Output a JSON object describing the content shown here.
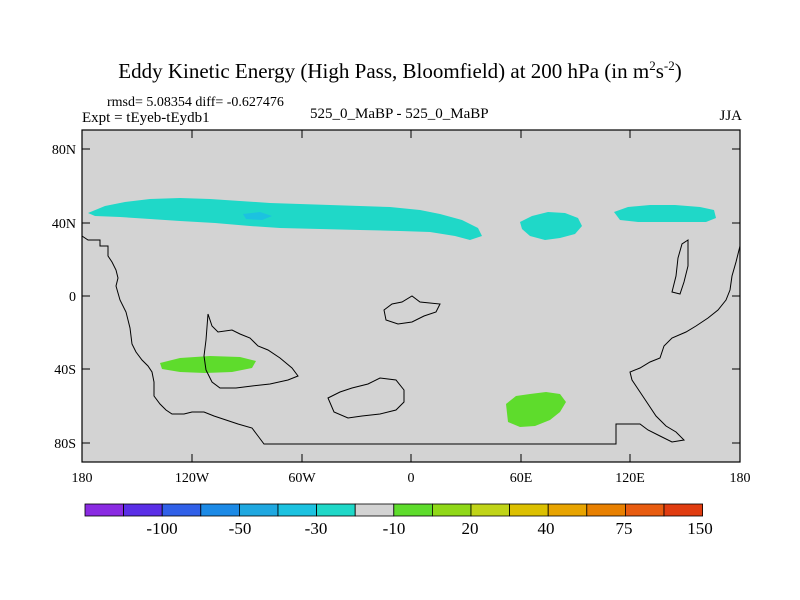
{
  "header": {
    "title_main": "Eddy Kinetic Energy (High Pass, Bloomfield) at 200 hPa (in m",
    "title_sup1": "2",
    "title_s": "s",
    "title_sup2": "-2",
    "title_end": ")",
    "rmsd": "rmsd= 5.08354 diff= -0.627476",
    "expt": "Expt = tEyeb-tEydb1",
    "comparison": "525_0_MaBP - 525_0_MaBP",
    "season": "JJA"
  },
  "map": {
    "lat_labels": [
      "80N",
      "40N",
      "0",
      "40S",
      "80S"
    ],
    "lon_labels": [
      "180",
      "120W",
      "60W",
      "0",
      "60E",
      "120E",
      "180"
    ],
    "background_color": "#d3d3d3",
    "positive_color": "#5edc2c",
    "negative_color": "#1fd8c8",
    "negative_deep_color": "#1cc2e0"
  },
  "colorbar": {
    "labels": [
      "-100",
      "-50",
      "-30",
      "-10",
      "20",
      "40",
      "75",
      "150"
    ],
    "colors": [
      "#8a2be2",
      "#5a2ee6",
      "#3060e8",
      "#1c8ae6",
      "#1fa8e0",
      "#1cc2e0",
      "#1fd8c8",
      "#d3d3d3",
      "#5edc2c",
      "#90d818",
      "#c0d418",
      "#dcc000",
      "#e8a400",
      "#e88000",
      "#e85c10",
      "#e03c10"
    ]
  }
}
